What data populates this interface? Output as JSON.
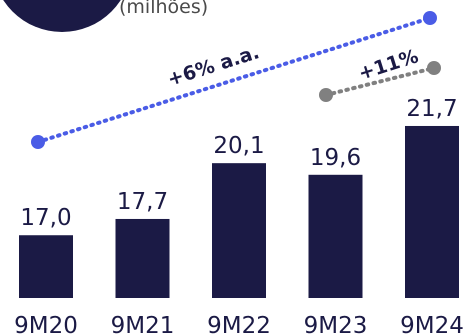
{
  "legend": {
    "caption": "(milhões)",
    "badge_color": "#1b1a45"
  },
  "colors": {
    "bar": "#1b1a45",
    "long_trend": "#4a5ce6",
    "short_trend": "#808080",
    "text": "#1b1a45"
  },
  "chart_data": {
    "type": "bar",
    "title": "",
    "xlabel": "",
    "ylabel": "",
    "categories": [
      "9M20",
      "9M21",
      "9M22",
      "9M23",
      "9M24"
    ],
    "series": [
      {
        "values": [
          17.0,
          17.7,
          20.1,
          19.6,
          21.7
        ],
        "value_labels": [
          "17,0",
          "17,7",
          "20,1",
          "19,6",
          "21,7"
        ]
      }
    ],
    "ylim": [
      14.3,
      22.0
    ],
    "grid": false,
    "annotations": [
      {
        "label": "+6% a.a.",
        "from": "9M20",
        "to": "9M24",
        "style": "dotted-blue"
      },
      {
        "label": "+11%",
        "from": "9M23",
        "to": "9M24",
        "style": "dotted-gray"
      }
    ]
  }
}
